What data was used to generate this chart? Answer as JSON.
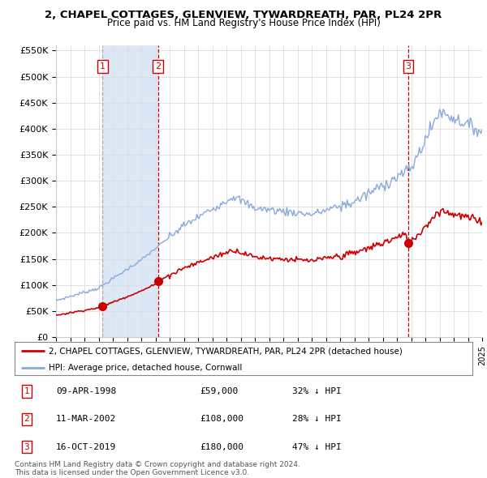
{
  "title": "2, CHAPEL COTTAGES, GLENVIEW, TYWARDREATH, PAR, PL24 2PR",
  "subtitle": "Price paid vs. HM Land Registry's House Price Index (HPI)",
  "ylim": [
    0,
    560000
  ],
  "yticks": [
    0,
    50000,
    100000,
    150000,
    200000,
    250000,
    300000,
    350000,
    400000,
    450000,
    500000,
    550000
  ],
  "ytick_labels": [
    "£0",
    "£50K",
    "£100K",
    "£150K",
    "£200K",
    "£250K",
    "£300K",
    "£350K",
    "£400K",
    "£450K",
    "£500K",
    "£550K"
  ],
  "xmin": 1995,
  "xmax": 2025,
  "grid_color": "#dddddd",
  "background_color": "#ffffff",
  "shade_color": "#dce8f5",
  "sale_dates": [
    1998.27,
    2002.19,
    2019.79
  ],
  "sale_prices": [
    59000,
    108000,
    180000
  ],
  "sale_numbers": [
    "1",
    "2",
    "3"
  ],
  "sale_label_color": "#cc0000",
  "hpi_color": "#88aadd",
  "price_color": "#cc0000",
  "vline_color": "#cc0000",
  "vline1_color": "#aaaaaa",
  "legend_entries": [
    "2, CHAPEL COTTAGES, GLENVIEW, TYWARDREATH, PAR, PL24 2PR (detached house)",
    "HPI: Average price, detached house, Cornwall"
  ],
  "table_rows": [
    [
      "1",
      "09-APR-1998",
      "£59,000",
      "32% ↓ HPI"
    ],
    [
      "2",
      "11-MAR-2002",
      "£108,000",
      "28% ↓ HPI"
    ],
    [
      "3",
      "16-OCT-2019",
      "£180,000",
      "47% ↓ HPI"
    ]
  ],
  "footnote": "Contains HM Land Registry data © Crown copyright and database right 2024.\nThis data is licensed under the Open Government Licence v3.0."
}
